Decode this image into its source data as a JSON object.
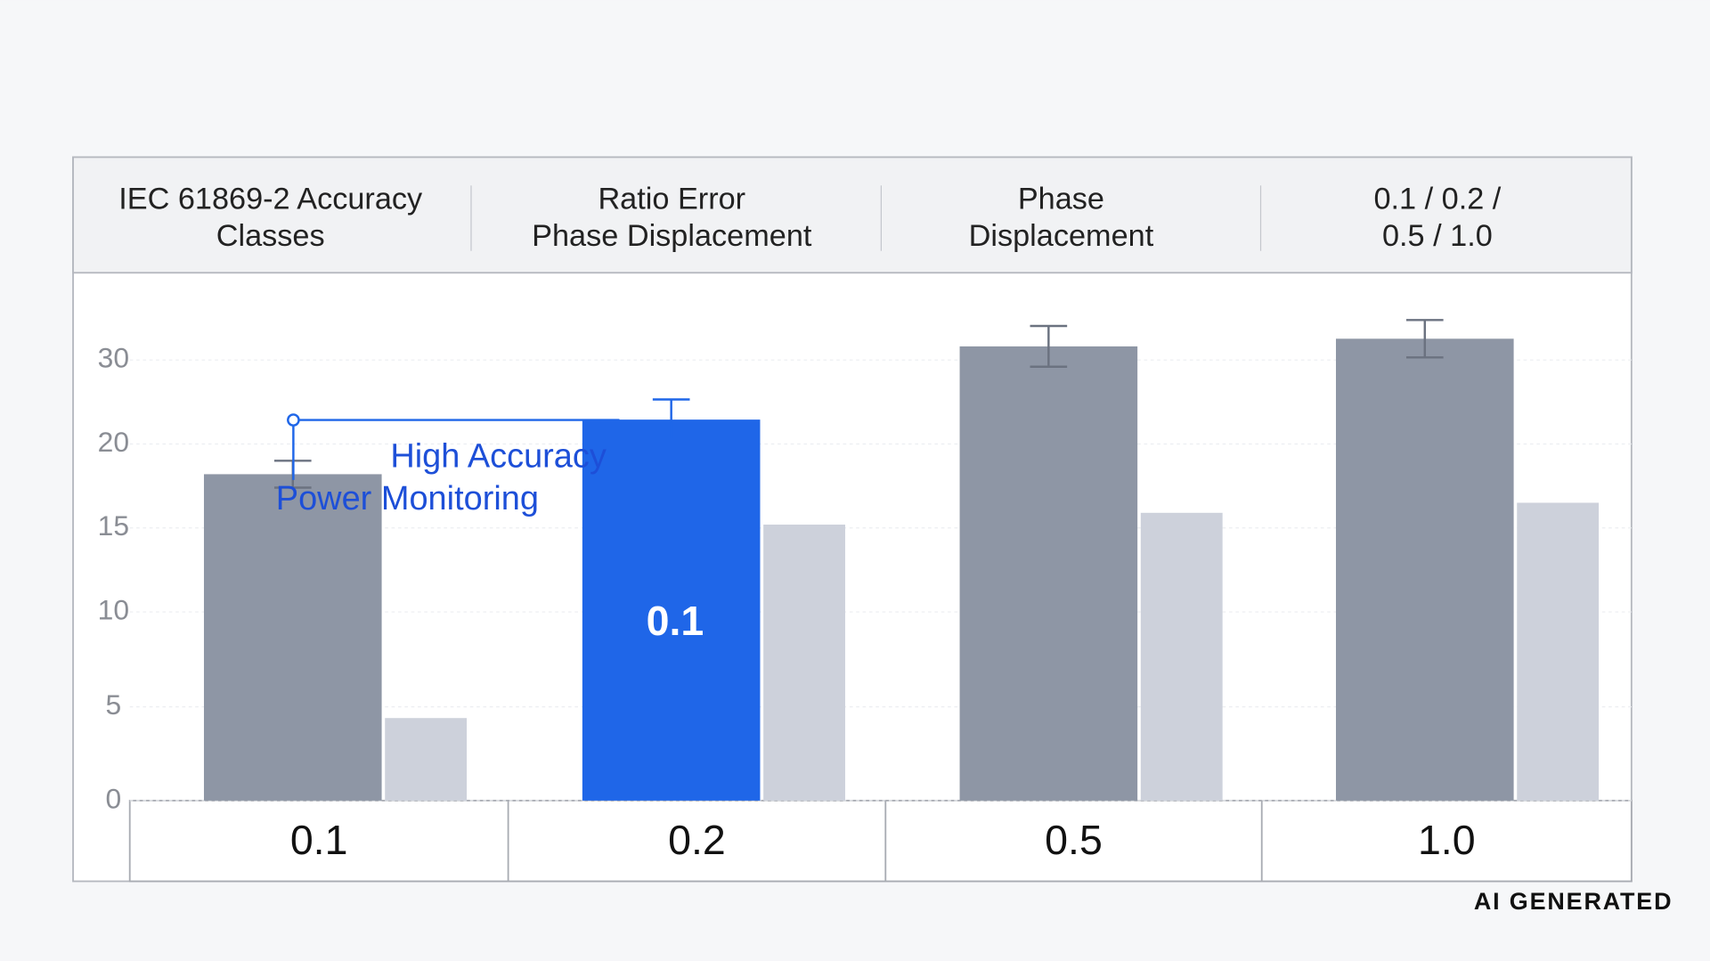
{
  "chart_data": {
    "type": "bar",
    "header": [
      [
        "IEC 61869-2 Accuracy",
        "Classes"
      ],
      [
        "Ratio Error",
        "Phase Displacement"
      ],
      [
        "Phase",
        "Displacement"
      ],
      [
        "0.1 / 0.2 /",
        "0.5 / 1.0"
      ]
    ],
    "categories": [
      "0.1",
      "0.2",
      "0.5",
      "1.0"
    ],
    "series": [
      {
        "colors": [
          "#8e96a5",
          "#1f66e8",
          "#8e96a5",
          "#8e96a5"
        ],
        "values": [
          18.2,
          22.9,
          31.6,
          32.5
        ],
        "errors": [
          0.8,
          2.4,
          2.4,
          2.2
        ]
      },
      {
        "color": "#cdd1db",
        "values": [
          4.4,
          15.2,
          15.9,
          16.5
        ]
      }
    ],
    "bar_label": "0.1",
    "annotation": [
      "High Accuracy",
      "Power Monitoring"
    ],
    "watermark": "AI GENERATED",
    "ylim": [
      0,
      40
    ],
    "yticks": [
      0,
      5,
      10,
      15,
      20,
      30
    ]
  }
}
